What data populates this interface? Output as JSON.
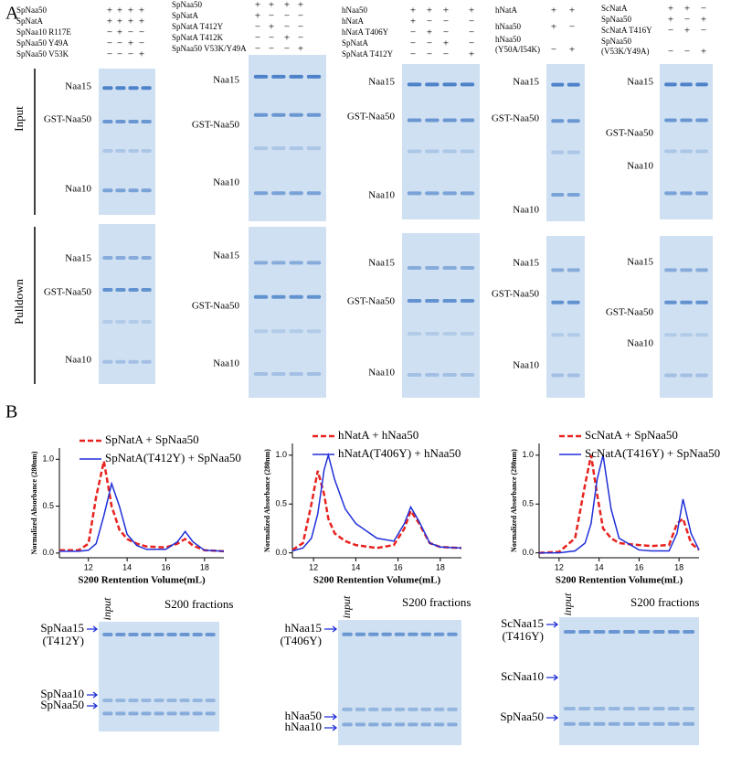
{
  "panel_a": {
    "label": "A",
    "input_label": "Input",
    "pulldown_label": "Pulldown",
    "groups": [
      {
        "conditions": [
          {
            "label": [
              "SpNaa50"
            ],
            "signs": [
              "+",
              "+",
              "+",
              "+"
            ]
          },
          {
            "label": [
              "SpNatA"
            ],
            "signs": [
              "+",
              "+",
              "+",
              "+"
            ]
          },
          {
            "label": [
              "SpNaa10 R117E"
            ],
            "signs": [
              "−",
              "+",
              "−",
              "−"
            ]
          },
          {
            "label": [
              "SpNaa50 Y49A"
            ],
            "signs": [
              "−",
              "−",
              "+",
              "−"
            ]
          },
          {
            "label": [
              "SpNaa50 V53K"
            ],
            "signs": [
              "−",
              "−",
              "−",
              "+"
            ]
          }
        ],
        "input_bands": [
          "Naa15",
          "GST-Naa50",
          "Naa10"
        ],
        "pulldown_bands": [
          "Naa15",
          "GST-Naa50",
          "Naa10"
        ]
      },
      {
        "conditions": [
          {
            "label": [
              "SpNaa50"
            ],
            "signs": [
              "+",
              "+",
              "+",
              "+"
            ]
          },
          {
            "label": [
              "SpNatA"
            ],
            "signs": [
              "+",
              "−",
              "−",
              "−"
            ]
          },
          {
            "label": [
              "SpNatA T412Y"
            ],
            "signs": [
              "−",
              "+",
              "−",
              "−"
            ]
          },
          {
            "label": [
              "SpNatA T412K"
            ],
            "signs": [
              "−",
              "−",
              "+",
              "−"
            ]
          },
          {
            "label": [
              "SpNaa50 V53K/Y49A"
            ],
            "signs": [
              "−",
              "−",
              "−",
              "+"
            ]
          }
        ],
        "input_bands": [
          "Naa15",
          "GST-Naa50",
          "Naa10"
        ],
        "pulldown_bands": [
          "Naa15",
          "GST-Naa50",
          "Naa10"
        ]
      },
      {
        "conditions": [
          {
            "label": [
              "hNaa50"
            ],
            "signs": [
              "+",
              "+",
              "+",
              "+"
            ]
          },
          {
            "label": [
              "hNatA"
            ],
            "signs": [
              "+",
              "−",
              "−",
              "−"
            ]
          },
          {
            "label": [
              "hNatA T406Y"
            ],
            "signs": [
              "−",
              "+",
              "−",
              "−"
            ]
          },
          {
            "label": [
              "SpNatA"
            ],
            "signs": [
              "−",
              "−",
              "+",
              "−"
            ]
          },
          {
            "label": [
              "SpNatA T412Y"
            ],
            "signs": [
              "−",
              "−",
              "−",
              "+"
            ]
          }
        ],
        "input_bands": [
          "Naa15",
          "GST-Naa50",
          "Naa10"
        ],
        "pulldown_bands": [
          "Naa15",
          "GST-Naa50",
          "Naa10"
        ]
      },
      {
        "conditions": [
          {
            "label": [
              "hNatA"
            ],
            "signs": [
              "+",
              "+"
            ]
          },
          {
            "label": [
              "hNaa50"
            ],
            "signs": [
              "+",
              "−"
            ]
          },
          {
            "label": [
              "hNaa50",
              "(Y50A/I54K)"
            ],
            "signs": [
              "−",
              "+"
            ]
          }
        ],
        "input_bands": [
          "Naa15",
          "GST-Naa50",
          "Naa10"
        ],
        "pulldown_bands": [
          "Naa15",
          "GST-Naa50",
          "Naa10"
        ]
      },
      {
        "conditions": [
          {
            "label": [
              "ScNatA"
            ],
            "signs": [
              "+",
              "+",
              "−"
            ]
          },
          {
            "label": [
              "SpNaa50"
            ],
            "signs": [
              "+",
              "−",
              "+"
            ]
          },
          {
            "label": [
              "ScNatA T416Y"
            ],
            "signs": [
              "−",
              "+",
              "−"
            ]
          },
          {
            "label": [
              "SpNaa50",
              "(V53K/Y49A)"
            ],
            "signs": [
              "−",
              "−",
              "+"
            ]
          }
        ],
        "input_bands": [
          "Naa15",
          "GST-Naa50",
          "Naa10"
        ],
        "pulldown_bands": [
          "Naa15",
          "GST-Naa50",
          "Naa10"
        ]
      }
    ]
  },
  "panel_b": {
    "label": "B",
    "gels": [
      {
        "input_label": "input",
        "title": "S200 fractions",
        "bands": [
          [
            "SpNaa15",
            "(T412Y)"
          ],
          [
            "SpNaa10"
          ],
          [
            "SpNaa50"
          ]
        ]
      },
      {
        "input_label": "input",
        "title": "S200 fractions",
        "bands": [
          [
            "hNaa15",
            "(T406Y)"
          ],
          [
            "hNaa50"
          ],
          [
            "hNaa10"
          ]
        ]
      },
      {
        "input_label": "input",
        "title": "S200 fractions",
        "bands": [
          [
            "ScNaa15",
            "(T416Y)"
          ],
          [
            "ScNaa10"
          ],
          [
            "SpNaa50"
          ]
        ]
      }
    ]
  },
  "chart_data": [
    {
      "type": "line",
      "x_label": "S200 Rentention Volume(mL)",
      "y_label": "Normalized Absorbance (280nm)",
      "x": [
        10.5,
        11.5,
        12,
        12.4,
        12.8,
        13.2,
        13.6,
        14,
        14.5,
        15,
        16,
        16.6,
        17,
        17.4,
        18,
        19
      ],
      "series": [
        {
          "name": "SpNatA + SpNaa50",
          "color": "#e8231f",
          "dash": true,
          "values": [
            0.03,
            0.03,
            0.1,
            0.6,
            0.98,
            0.5,
            0.25,
            0.15,
            0.1,
            0.07,
            0.06,
            0.1,
            0.15,
            0.08,
            0.03,
            0.02
          ]
        },
        {
          "name": "SpNatA(T412Y) + SpNaa50",
          "color": "#1f2fd8",
          "dash": false,
          "values": [
            0.02,
            0.02,
            0.03,
            0.1,
            0.4,
            0.74,
            0.5,
            0.2,
            0.08,
            0.04,
            0.04,
            0.12,
            0.23,
            0.12,
            0.03,
            0.02
          ]
        }
      ],
      "xlim": [
        10.5,
        19
      ],
      "ylim": [
        -0.05,
        1.12
      ],
      "xticks": [
        12,
        14,
        16,
        18
      ],
      "yticks": [
        {
          "value": 0,
          "label": "0.0"
        },
        0.5,
        {
          "value": 1,
          "label": "1.0"
        }
      ]
    },
    {
      "type": "line",
      "x_label": "S200 Rentention Volume(mL)",
      "y_label": "Normalized Absorbance (280nm)",
      "x": [
        11,
        11.5,
        11.9,
        12.2,
        12.5,
        12.7,
        13,
        13.5,
        14,
        15,
        15.8,
        16.3,
        16.6,
        17,
        17.5,
        18,
        19
      ],
      "series": [
        {
          "name": "hNatA + hNaa50",
          "color": "#e8231f",
          "dash": true,
          "values": [
            0.03,
            0.1,
            0.5,
            0.84,
            0.6,
            0.35,
            0.2,
            0.12,
            0.08,
            0.05,
            0.08,
            0.25,
            0.43,
            0.3,
            0.1,
            0.06,
            0.05
          ]
        },
        {
          "name": "hNatA(T406Y) + hNaa50",
          "color": "#1f2fd8",
          "dash": false,
          "values": [
            0.02,
            0.05,
            0.15,
            0.4,
            0.85,
            1.0,
            0.75,
            0.45,
            0.3,
            0.15,
            0.12,
            0.3,
            0.47,
            0.32,
            0.1,
            0.06,
            0.05
          ]
        }
      ],
      "xlim": [
        11,
        19
      ],
      "ylim": [
        -0.05,
        1.12
      ],
      "xticks": [
        12,
        14,
        16,
        18
      ],
      "yticks": [
        {
          "value": 0,
          "label": "0.0"
        },
        0.5,
        {
          "value": 1,
          "label": "1.0"
        }
      ]
    },
    {
      "type": "line",
      "x_label": "S200 Rentention Volume(mL)",
      "y_label": "Normalized Absorbance (280nm)",
      "x": [
        11,
        12,
        12.8,
        13.3,
        13.6,
        13.9,
        14.2,
        14.6,
        15,
        16,
        16.6,
        17.5,
        17.9,
        18.2,
        18.6,
        19
      ],
      "series": [
        {
          "name": "ScNatA + SpNaa50",
          "color": "#e8231f",
          "dash": true,
          "values": [
            0,
            0.01,
            0.15,
            0.7,
            1.0,
            0.6,
            0.25,
            0.15,
            0.1,
            0.08,
            0.07,
            0.08,
            0.3,
            0.35,
            0.1,
            0.03
          ]
        },
        {
          "name": "ScNatA(T416Y) + SpNaa50",
          "color": "#1f2fd8",
          "dash": false,
          "values": [
            0,
            0,
            0.02,
            0.1,
            0.3,
            0.75,
            1.0,
            0.45,
            0.15,
            0.03,
            0.02,
            0.02,
            0.2,
            0.55,
            0.2,
            0.03
          ]
        }
      ],
      "xlim": [
        11,
        19
      ],
      "ylim": [
        -0.05,
        1.12
      ],
      "xticks": [
        12,
        14,
        16,
        18
      ],
      "yticks": [
        {
          "value": 0,
          "label": "0.0"
        },
        0.5,
        {
          "value": 1,
          "label": "1.0"
        }
      ]
    }
  ]
}
